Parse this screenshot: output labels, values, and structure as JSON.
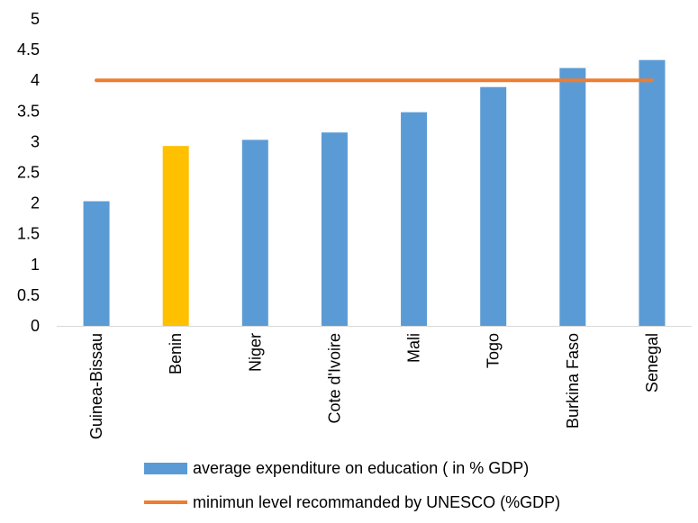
{
  "chart_data": {
    "type": "bar",
    "categories": [
      "Guinea-Bissau",
      "Benin",
      "Niger",
      "Cote d'Ivoire",
      "Mali",
      "Togo",
      "Burkina Faso",
      "Senegal"
    ],
    "series": [
      {
        "name": "average expenditure on education ( in % GDP)",
        "type": "bar",
        "values": [
          2.03,
          2.93,
          3.03,
          3.15,
          3.48,
          3.89,
          4.2,
          4.33
        ],
        "color": "#5b9bd5",
        "highlight": {
          "category": "Benin",
          "color": "#ffc000"
        }
      },
      {
        "name": "minimun level recommanded by UNESCO (%GDP)",
        "type": "line",
        "value": 4,
        "color": "#ed7d31"
      }
    ],
    "ylim": [
      0,
      5
    ],
    "yticks": [
      "0",
      "0.5",
      "1",
      "1.5",
      "2",
      "2.5",
      "3",
      "3.5",
      "4",
      "4.5",
      "5"
    ],
    "grid": false,
    "legend": "bottom",
    "title": "",
    "xlabel": "",
    "ylabel": ""
  }
}
